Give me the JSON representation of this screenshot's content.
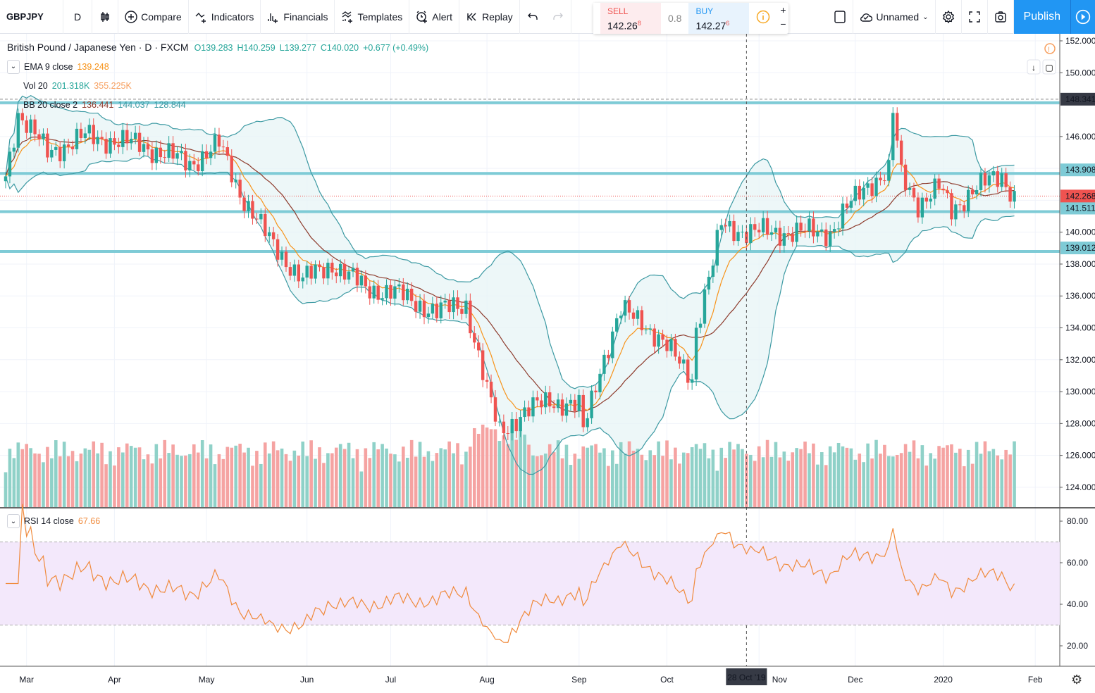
{
  "toolbar": {
    "symbol": "GBPJPY",
    "interval": "D",
    "compare": "Compare",
    "indicators": "Indicators",
    "financials": "Financials",
    "templates": "Templates",
    "alert": "Alert",
    "replay": "Replay",
    "layout_name": "Unnamed",
    "publish": "Publish"
  },
  "trade": {
    "sell_label": "SELL",
    "sell_price": "142.26",
    "sell_pip": "8",
    "spread": "0.8",
    "buy_label": "BUY",
    "buy_price": "142.27",
    "buy_pip": "6"
  },
  "legend": {
    "title": "British Pound / Japanese Yen · D · FXCM",
    "o": "O139.283",
    "h": "H140.259",
    "l": "L139.277",
    "c": "C140.020",
    "chg": "+0.677 (+0.49%)",
    "ema_label": "EMA 9 close",
    "ema_value": "139.248",
    "vol_label": "Vol 20",
    "vol_value": "201.318K",
    "vol_ma": "355.225K",
    "bb_label": "BB 20 close 2",
    "bb_basis": "136.441",
    "bb_upper": "144.037",
    "bb_lower": "128.844",
    "rsi_label": "RSI 14 close",
    "rsi_value": "67.66"
  },
  "colors": {
    "up": "#26a69a",
    "down": "#ef5350",
    "hline": "#7ecbd6",
    "ema": "#f7931a",
    "basis": "#8d3b2c",
    "bb": "#3d9aa3",
    "rsi": "#f08a3c",
    "rsi_band": "#f3e8fb",
    "accent": "#2196f3"
  },
  "chart_data": {
    "type": "candlestick",
    "symbol": "GBPJPY",
    "ylim": [
      123,
      152.5
    ],
    "price_ticks": [
      "152.000",
      "150.000",
      "146.000",
      "140.000",
      "138.000",
      "136.000",
      "134.000",
      "132.000",
      "130.000",
      "128.000",
      "126.000",
      "124.000"
    ],
    "price_tick_values": [
      152,
      150,
      146,
      140,
      138,
      136,
      134,
      132,
      130,
      128,
      126,
      124
    ],
    "hlines": [
      {
        "value": 148.341,
        "label": "148.341",
        "dashed": true
      },
      {
        "value": 143.908,
        "label": "143.908"
      },
      {
        "value": 141.511,
        "label": "141.511"
      },
      {
        "value": 139.012,
        "label": "139.012"
      }
    ],
    "last_price": {
      "value": 142.268,
      "label": "142.268"
    },
    "close_keypoints": [
      [
        0,
        143.5
      ],
      [
        3,
        147.5
      ],
      [
        10,
        145
      ],
      [
        19,
        146
      ],
      [
        32,
        145.5
      ],
      [
        44,
        144.3
      ],
      [
        51,
        145.5
      ],
      [
        56,
        142.5
      ],
      [
        63,
        139.5
      ],
      [
        71,
        137
      ],
      [
        78,
        138
      ],
      [
        86,
        136.5
      ],
      [
        93,
        136.2
      ],
      [
        103,
        135
      ],
      [
        110,
        135.5
      ],
      [
        115,
        130
      ],
      [
        118,
        127.5
      ],
      [
        123,
        128.5
      ],
      [
        130,
        129.5
      ],
      [
        137,
        129
      ],
      [
        138,
        127.5
      ],
      [
        142,
        131.5
      ],
      [
        147,
        135
      ],
      [
        152,
        134.5
      ],
      [
        157,
        133
      ],
      [
        164,
        131
      ],
      [
        165,
        134
      ],
      [
        169,
        138
      ],
      [
        171,
        140.5
      ],
      [
        177,
        140
      ],
      [
        187,
        140
      ],
      [
        197,
        140
      ],
      [
        201,
        141.5
      ],
      [
        206,
        143
      ],
      [
        211,
        143.8
      ],
      [
        212,
        147.5
      ],
      [
        214,
        143.5
      ],
      [
        218,
        141.8
      ],
      [
        223,
        142.8
      ],
      [
        226,
        141.3
      ],
      [
        231,
        142.7
      ],
      [
        238,
        143.5
      ],
      [
        241,
        142.3
      ]
    ],
    "rsi_ticks": [
      "80.00",
      "60.00",
      "40.00",
      "20.00"
    ],
    "rsi_tick_values": [
      80,
      60,
      40,
      20
    ],
    "rsi_band": [
      30,
      70
    ],
    "time_labels": [
      {
        "label": "Mar",
        "day": 5
      },
      {
        "label": "Apr",
        "day": 26
      },
      {
        "label": "May",
        "day": 48
      },
      {
        "label": "Jun",
        "day": 72
      },
      {
        "label": "Jul",
        "day": 92
      },
      {
        "label": "Aug",
        "day": 115
      },
      {
        "label": "Sep",
        "day": 137
      },
      {
        "label": "Oct",
        "day": 158
      },
      {
        "label": "Nov",
        "day": 180
      },
      {
        "label": "Dec",
        "day": 203
      },
      {
        "label": "2020",
        "day": 224
      },
      {
        "label": "Feb",
        "day": 246
      }
    ],
    "crosshair_label": "28 Oct '19",
    "crosshair_day": 177
  }
}
